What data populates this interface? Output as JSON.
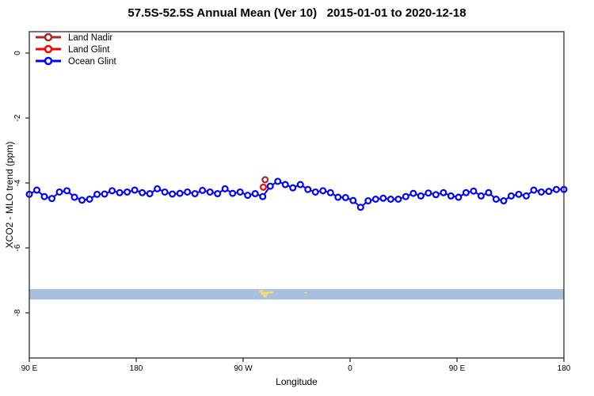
{
  "chart_data": {
    "type": "line",
    "title": "57.5S-52.5S Annual Mean (Ver 10)   2015-01-01 to 2020-12-18",
    "xlabel": "Longitude",
    "ylabel": "XCO2 - MLO trend (ppm)",
    "axis_color": "#2e2e2e",
    "x_axis": {
      "range": [
        0,
        450
      ],
      "note": "longitude axis starts at 90E and wraps eastward across the dateline",
      "ticks": [
        {
          "pos": 0,
          "label": "90 E"
        },
        {
          "pos": 90,
          "label": "180"
        },
        {
          "pos": 180,
          "label": "90 W"
        },
        {
          "pos": 270,
          "label": "0"
        },
        {
          "pos": 360,
          "label": "90 E"
        },
        {
          "pos": 450,
          "label": "180"
        }
      ]
    },
    "y_axis": {
      "range": [
        0.7,
        -9.4
      ],
      "ticks": [
        0,
        -2,
        -4,
        -6,
        -8
      ]
    },
    "legend": {
      "position": "top-left",
      "items": [
        "Land Nadir",
        "Land Glint",
        "Ocean Glint"
      ]
    },
    "map_strip": {
      "ocean_color": "#A9BFDE",
      "land_color": "#EFD87E",
      "y_top": -7.27,
      "y_bottom": -7.59,
      "land_patches": [
        [
          193.5,
          197.0,
          -7.3,
          -7.38
        ],
        [
          195.0,
          201.0,
          -7.35,
          -7.45
        ],
        [
          197.0,
          200.0,
          -7.44,
          -7.52
        ],
        [
          200.5,
          203.0,
          -7.33,
          -7.4
        ],
        [
          202.5,
          206.0,
          -7.34,
          -7.39
        ],
        [
          231.5,
          234.0,
          -7.36,
          -7.4
        ]
      ]
    },
    "series": [
      {
        "name": "Ocean Glint",
        "color": "#0000FF",
        "marker": "open-circle",
        "x_start": 0,
        "x_step": 6.338,
        "values": [
          -4.35,
          -4.22,
          -4.42,
          -4.48,
          -4.28,
          -4.24,
          -4.44,
          -4.53,
          -4.5,
          -4.35,
          -4.34,
          -4.24,
          -4.3,
          -4.28,
          -4.22,
          -4.3,
          -4.33,
          -4.18,
          -4.28,
          -4.34,
          -4.32,
          -4.28,
          -4.33,
          -4.23,
          -4.28,
          -4.33,
          -4.18,
          -4.32,
          -4.28,
          -4.38,
          -4.33,
          -4.42,
          -4.1,
          -3.95,
          -4.05,
          -4.15,
          -4.05,
          -4.2,
          -4.28,
          -4.24,
          -4.3,
          -4.44,
          -4.45,
          -4.54,
          -4.75,
          -4.55,
          -4.5,
          -4.47,
          -4.5,
          -4.5,
          -4.42,
          -4.32,
          -4.4,
          -4.31,
          -4.36,
          -4.3,
          -4.4,
          -4.44,
          -4.3,
          -4.25,
          -4.4,
          -4.3,
          -4.5,
          -4.55,
          -4.4,
          -4.35,
          -4.4,
          -4.22,
          -4.28,
          -4.26,
          -4.2,
          -4.2
        ]
      },
      {
        "name": "Land Glint",
        "color": "#FF0000",
        "marker": "open-circle",
        "points": [
          [
            197.0,
            -4.13
          ]
        ]
      },
      {
        "name": "Land Nadir",
        "color": "#A52A2A",
        "marker": "open-circle",
        "points": [
          [
            198.5,
            -3.9
          ]
        ]
      }
    ]
  }
}
